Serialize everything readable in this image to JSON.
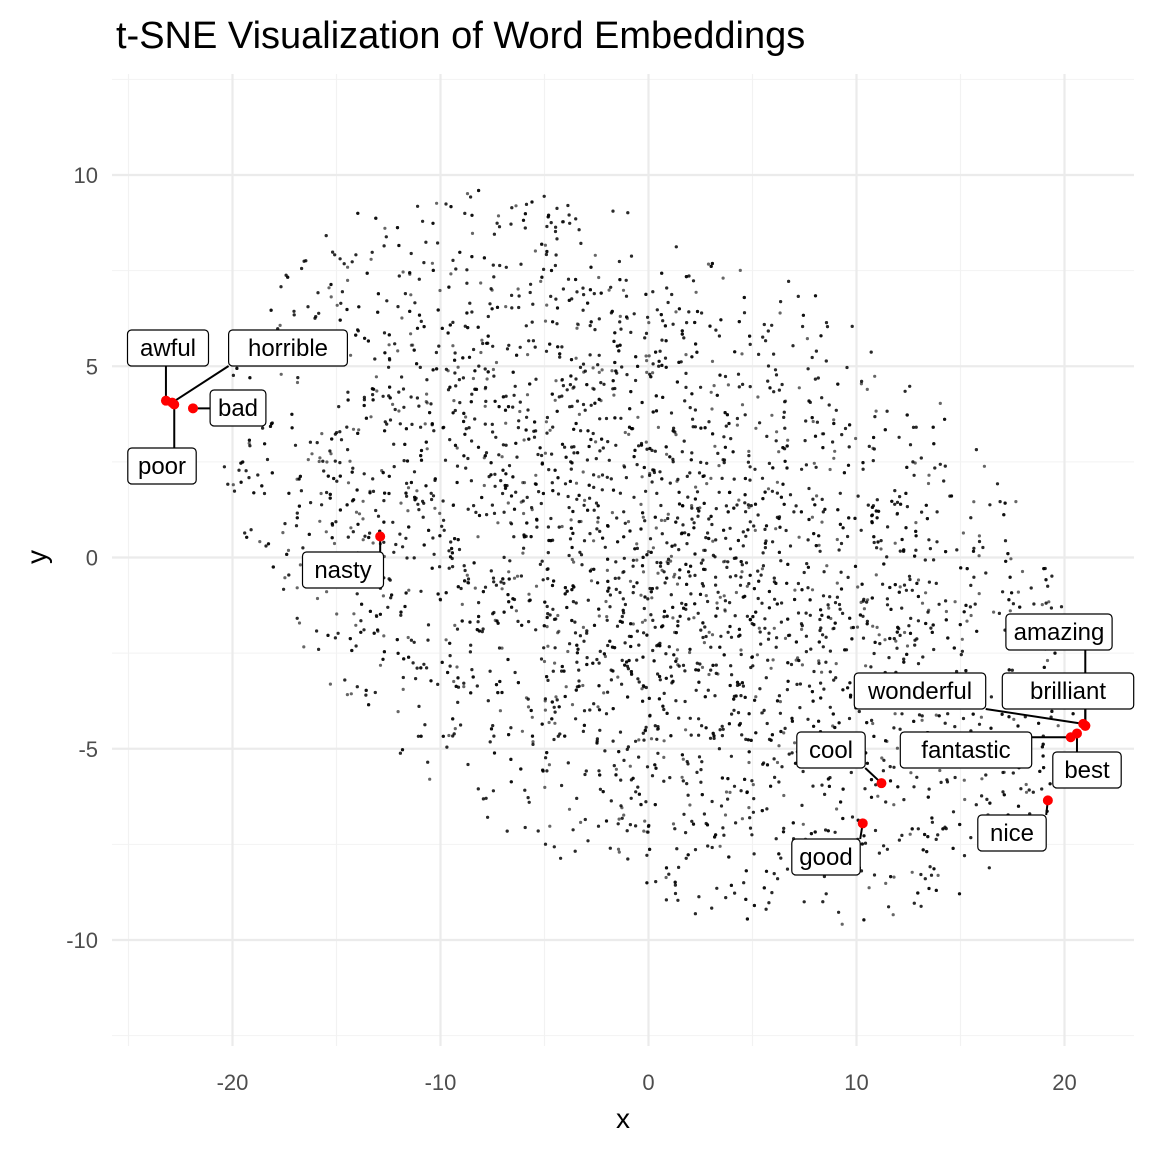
{
  "chart_data": {
    "type": "scatter",
    "title": "t-SNE Visualization of Word Embeddings",
    "xlabel": "x",
    "ylabel": "y",
    "xlim": [
      -25,
      23.5
    ],
    "ylim": [
      -12.6,
      12.4
    ],
    "x_ticks": [
      -20,
      -10,
      0,
      10,
      20
    ],
    "y_ticks": [
      -10,
      -5,
      0,
      5,
      10
    ],
    "x_tick_labels": [
      "-20",
      "-10",
      "0",
      "10",
      "20"
    ],
    "y_tick_labels": [
      "-10",
      "-5",
      "0",
      "5",
      "10"
    ],
    "grid": true,
    "background_points": {
      "count": 6000,
      "approx_distribution": "elliptical cloud centered near (0, 0), elongated from upper-left (-22, 4) to lower-right (20, -5)",
      "x_range": [
        -23,
        22
      ],
      "y_range": [
        -12,
        11.5
      ],
      "color": "#000000",
      "opacity": 0.6
    },
    "highlighted_color": "#ff0000",
    "highlighted_words": [
      {
        "label": "awful",
        "x": -23.2,
        "y": 4.1
      },
      {
        "label": "poor",
        "x": -22.8,
        "y": 4.0
      },
      {
        "label": "horrible",
        "x": -22.9,
        "y": 4.05
      },
      {
        "label": "bad",
        "x": -21.9,
        "y": 3.9
      },
      {
        "label": "nasty",
        "x": -12.9,
        "y": 0.55
      },
      {
        "label": "amazing",
        "x": 21.0,
        "y": -4.4
      },
      {
        "label": "wonderful",
        "x": 20.9,
        "y": -4.35
      },
      {
        "label": "brilliant",
        "x": 21.0,
        "y": -4.4
      },
      {
        "label": "fantastic",
        "x": 20.3,
        "y": -4.7
      },
      {
        "label": "best",
        "x": 20.6,
        "y": -4.6
      },
      {
        "label": "cool",
        "x": 11.2,
        "y": -5.9
      },
      {
        "label": "nice",
        "x": 19.2,
        "y": -6.35
      },
      {
        "label": "good",
        "x": 10.3,
        "y": -6.95
      }
    ]
  }
}
